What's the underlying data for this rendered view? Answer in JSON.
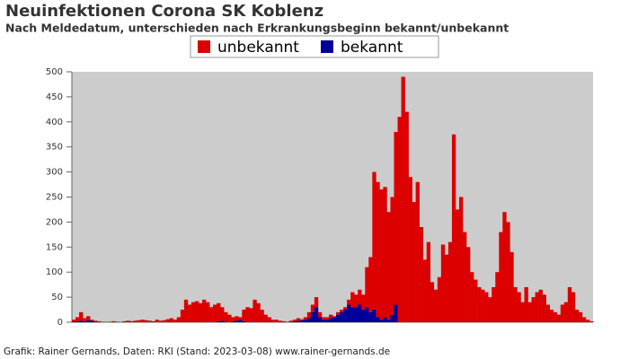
{
  "chart_data": {
    "type": "stacked-bar",
    "title": "Neuinfektionen Corona SK Koblenz",
    "subtitle": "Nach Meldedatum, unterschieden nach Erkrankungsbeginn bekannt/unbekannt",
    "footer": "Grafik: Rainer Gernands, Daten: RKI (Stand: 2023-03-08) www.rainer-gernands.de",
    "legend": "top",
    "ylim": [
      0,
      500
    ],
    "yticks": [
      0,
      50,
      100,
      150,
      200,
      250,
      300,
      350,
      400,
      450,
      500
    ],
    "series": [
      {
        "name": "unbekannt",
        "color": "#dd0000",
        "values": [
          4,
          8,
          17,
          6,
          8,
          2,
          2,
          2,
          1,
          0,
          1,
          2,
          1,
          0,
          2,
          3,
          2,
          3,
          4,
          5,
          4,
          3,
          2,
          5,
          3,
          4,
          6,
          8,
          5,
          10,
          25,
          45,
          35,
          40,
          42,
          38,
          45,
          40,
          30,
          35,
          36,
          27,
          19,
          15,
          8,
          9,
          5,
          23,
          30,
          28,
          45,
          38,
          25,
          15,
          10,
          5,
          5,
          3,
          2,
          1,
          3,
          3,
          5,
          2,
          5,
          12,
          15,
          20,
          10,
          5,
          5,
          7,
          2,
          5,
          5,
          5,
          10,
          30,
          25,
          30,
          30,
          80,
          110,
          275,
          270,
          260,
          260,
          215,
          235,
          345,
          410,
          490,
          420,
          290,
          240,
          280,
          190,
          125,
          160,
          80,
          65,
          90,
          155,
          135,
          160,
          375,
          225,
          250,
          180,
          150,
          100,
          85,
          70,
          65,
          60,
          50,
          70,
          100,
          180,
          220,
          200,
          140,
          70,
          60,
          40,
          70,
          40,
          50,
          60,
          65,
          55,
          35,
          25,
          20,
          15,
          35,
          40,
          70,
          60,
          25,
          20,
          10,
          5,
          2
        ]
      },
      {
        "name": "bekannt",
        "color": "#000099",
        "values": [
          1,
          2,
          3,
          2,
          4,
          3,
          1,
          0,
          0,
          0,
          0,
          0,
          0,
          0,
          0,
          0,
          0,
          0,
          0,
          0,
          0,
          0,
          0,
          0,
          0,
          0,
          0,
          0,
          0,
          0,
          0,
          0,
          0,
          0,
          0,
          0,
          0,
          0,
          0,
          0,
          2,
          3,
          1,
          0,
          2,
          3,
          5,
          2,
          0,
          0,
          0,
          0,
          0,
          0,
          0,
          0,
          0,
          0,
          0,
          0,
          0,
          2,
          3,
          4,
          5,
          8,
          20,
          30,
          10,
          5,
          5,
          8,
          10,
          15,
          20,
          25,
          35,
          30,
          30,
          35,
          25,
          30,
          20,
          25,
          10,
          5,
          10,
          5,
          15,
          35,
          0,
          0,
          0,
          0,
          0,
          0,
          0,
          0,
          0,
          0,
          0,
          0,
          0,
          0,
          0,
          0,
          0,
          0,
          0,
          0,
          0,
          0,
          0,
          0,
          0,
          0,
          0,
          0,
          0,
          0,
          0,
          0,
          0,
          0,
          0,
          0,
          0,
          0,
          0,
          0,
          0,
          0,
          0,
          0,
          0,
          0,
          0,
          0,
          0,
          0,
          0,
          0,
          0,
          0
        ]
      }
    ]
  }
}
